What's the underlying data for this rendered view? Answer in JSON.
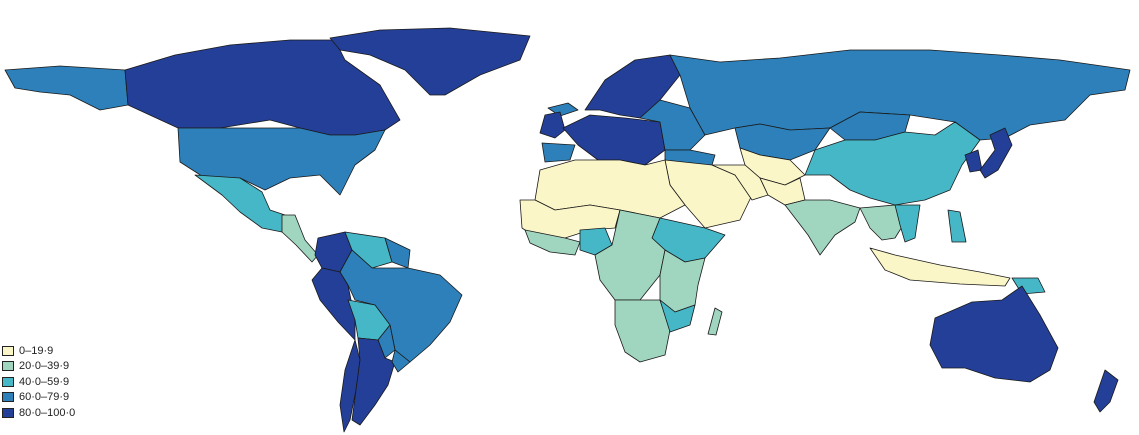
{
  "colors": {
    "c1": "#fbf6c8",
    "c2": "#a0d5bf",
    "c3": "#46b7c6",
    "c4": "#2d80b9",
    "c5": "#243f97"
  },
  "legend": {
    "items": [
      {
        "label": "0–19·9",
        "color": "#fbf6c8"
      },
      {
        "label": "20·0–39·9",
        "color": "#a0d5bf"
      },
      {
        "label": "40·0–59·9",
        "color": "#46b7c6"
      },
      {
        "label": "60·0–79·9",
        "color": "#2d80b9"
      },
      {
        "label": "80·0–100·0",
        "color": "#243f97"
      }
    ]
  },
  "regions": [
    {
      "name": "canada",
      "cls": "c5"
    },
    {
      "name": "greenland",
      "cls": "c5"
    },
    {
      "name": "alaska",
      "cls": "c4"
    },
    {
      "name": "usa",
      "cls": "c4"
    },
    {
      "name": "mexico",
      "cls": "c3"
    },
    {
      "name": "central-america",
      "cls": "c2"
    },
    {
      "name": "colombia",
      "cls": "c5"
    },
    {
      "name": "venezuela",
      "cls": "c3"
    },
    {
      "name": "guianas",
      "cls": "c4"
    },
    {
      "name": "ecuador-peru",
      "cls": "c5"
    },
    {
      "name": "brazil",
      "cls": "c4"
    },
    {
      "name": "bolivia",
      "cls": "c3"
    },
    {
      "name": "paraguay",
      "cls": "c4"
    },
    {
      "name": "chile",
      "cls": "c5"
    },
    {
      "name": "argentina",
      "cls": "c5"
    },
    {
      "name": "uruguay",
      "cls": "c4"
    },
    {
      "name": "iceland",
      "cls": "c4"
    },
    {
      "name": "uk",
      "cls": "c5"
    },
    {
      "name": "iberia",
      "cls": "c4"
    },
    {
      "name": "western-europe",
      "cls": "c5"
    },
    {
      "name": "scandinavia",
      "cls": "c5"
    },
    {
      "name": "eastern-europe",
      "cls": "c4"
    },
    {
      "name": "russia",
      "cls": "c4"
    },
    {
      "name": "kazakhstan",
      "cls": "c4"
    },
    {
      "name": "turkey",
      "cls": "c4"
    },
    {
      "name": "north-africa",
      "cls": "c1"
    },
    {
      "name": "middle-east",
      "cls": "c1"
    },
    {
      "name": "iran",
      "cls": "c1"
    },
    {
      "name": "central-asia",
      "cls": "c1"
    },
    {
      "name": "pakistan",
      "cls": "c1"
    },
    {
      "name": "sahel-west-africa",
      "cls": "c1"
    },
    {
      "name": "west-africa-coast",
      "cls": "c2"
    },
    {
      "name": "nigeria",
      "cls": "c3"
    },
    {
      "name": "central-africa",
      "cls": "c2"
    },
    {
      "name": "horn-of-africa",
      "cls": "c3"
    },
    {
      "name": "east-africa",
      "cls": "c2"
    },
    {
      "name": "southern-africa",
      "cls": "c2"
    },
    {
      "name": "zimbabwe-mozambique",
      "cls": "c3"
    },
    {
      "name": "madagascar",
      "cls": "c2"
    },
    {
      "name": "india",
      "cls": "c2"
    },
    {
      "name": "china",
      "cls": "c3"
    },
    {
      "name": "mongolia",
      "cls": "c4"
    },
    {
      "name": "korea",
      "cls": "c5"
    },
    {
      "name": "japan",
      "cls": "c5"
    },
    {
      "name": "southeast-asia",
      "cls": "c2"
    },
    {
      "name": "vietnam",
      "cls": "c3"
    },
    {
      "name": "philippines",
      "cls": "c3"
    },
    {
      "name": "indonesia",
      "cls": "c1"
    },
    {
      "name": "papua-new-guinea",
      "cls": "c3"
    },
    {
      "name": "australia",
      "cls": "c5"
    },
    {
      "name": "new-zealand",
      "cls": "c5"
    }
  ]
}
